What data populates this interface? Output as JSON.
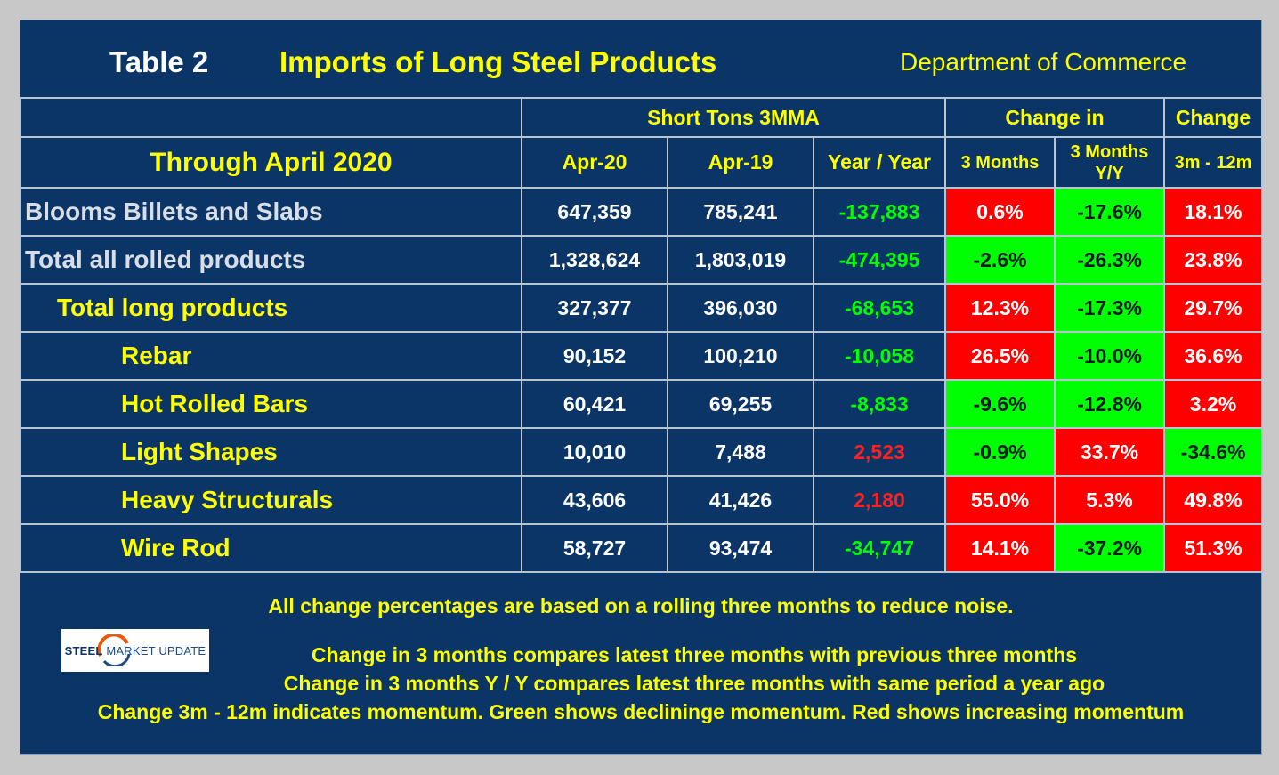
{
  "header": {
    "table_label": "Table 2",
    "title": "Imports of Long Steel Products",
    "source": "Department of Commerce"
  },
  "columns": {
    "group_short_tons": "Short Tons 3MMA",
    "group_change_in": "Change in",
    "group_change": "Change",
    "period": "Through April 2020",
    "apr20": "Apr-20",
    "apr19": "Apr-19",
    "yoy": "Year / Year",
    "three_months": "3 Months",
    "three_months_yy_line1": "3 Months",
    "three_months_yy_line2": "Y/Y",
    "momentum": "3m - 12m"
  },
  "colors": {
    "positive_change": "#ff0000",
    "negative_change": "#00ff00",
    "yoy_negative_text": "#00ff00",
    "yoy_positive_text": "#ff2020",
    "panel_bg": "#0a3566"
  },
  "rows": [
    {
      "label": "Blooms Billets and Slabs",
      "level": 0,
      "apr20": "647,359",
      "apr19": "785,241",
      "yoy": "-137,883",
      "chg3m": "0.6%",
      "chg3m_yy": "-17.6%",
      "momentum": "18.1%"
    },
    {
      "label": "Total all rolled products",
      "level": 0,
      "apr20": "1,328,624",
      "apr19": "1,803,019",
      "yoy": "-474,395",
      "chg3m": "-2.6%",
      "chg3m_yy": "-26.3%",
      "momentum": "23.8%"
    },
    {
      "label": "Total long products",
      "level": 1,
      "apr20": "327,377",
      "apr19": "396,030",
      "yoy": "-68,653",
      "chg3m": "12.3%",
      "chg3m_yy": "-17.3%",
      "momentum": "29.7%"
    },
    {
      "label": "Rebar",
      "level": 2,
      "apr20": "90,152",
      "apr19": "100,210",
      "yoy": "-10,058",
      "chg3m": "26.5%",
      "chg3m_yy": "-10.0%",
      "momentum": "36.6%"
    },
    {
      "label": "Hot Rolled Bars",
      "level": 2,
      "apr20": "60,421",
      "apr19": "69,255",
      "yoy": "-8,833",
      "chg3m": "-9.6%",
      "chg3m_yy": "-12.8%",
      "momentum": "3.2%"
    },
    {
      "label": "Light Shapes",
      "level": 2,
      "apr20": "10,010",
      "apr19": "7,488",
      "yoy": "2,523",
      "chg3m": "-0.9%",
      "chg3m_yy": "33.7%",
      "momentum": "-34.6%"
    },
    {
      "label": "Heavy Structurals",
      "level": 2,
      "apr20": "43,606",
      "apr19": "41,426",
      "yoy": "2,180",
      "chg3m": "55.0%",
      "chg3m_yy": "5.3%",
      "momentum": "49.8%"
    },
    {
      "label": "Wire Rod",
      "level": 2,
      "apr20": "58,727",
      "apr19": "93,474",
      "yoy": "-34,747",
      "chg3m": "14.1%",
      "chg3m_yy": "-37.2%",
      "momentum": "51.3%"
    }
  ],
  "notes": {
    "line1": "All change percentages are based on a rolling three months to reduce noise.",
    "line2": "Change in 3 months compares latest three months with previous three months",
    "line3": "Change in 3 months  Y / Y compares latest three months with same period a year ago",
    "line4": "Change 3m - 12m indicates momentum. Green shows declininge momentum. Red shows increasing momentum"
  },
  "logo": {
    "brand_a": "STEEL",
    "brand_b": "MARKET UPDATE"
  }
}
